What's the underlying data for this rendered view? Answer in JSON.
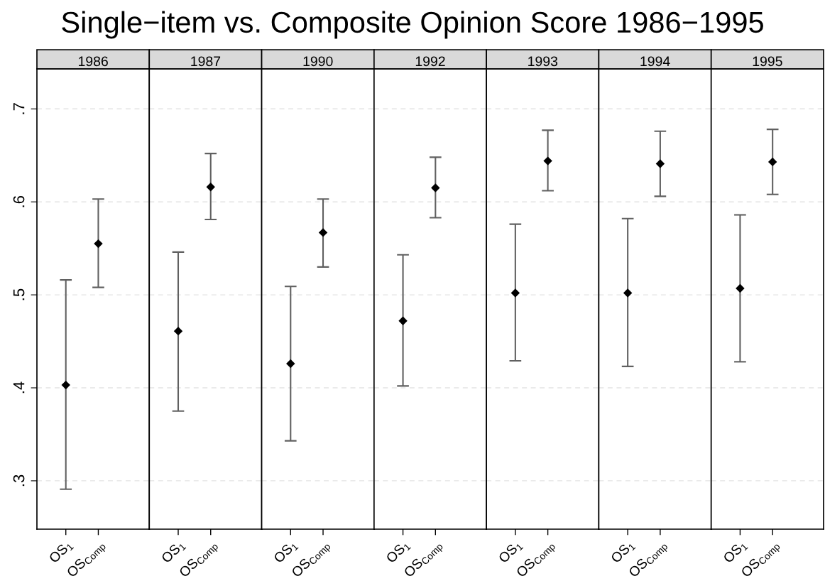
{
  "chart_data": [
    {
      "type": "scatter",
      "subtitle": "1986",
      "categories": [
        "OS$_{1}$",
        "OS$_{Comp}$"
      ],
      "values": [
        0.403,
        0.555
      ],
      "errors": [
        [
          0.291,
          0.516
        ],
        [
          0.508,
          0.603
        ]
      ],
      "color": "#000000",
      "marker": "diamond",
      "grid": "y",
      "ylim": [
        0.248,
        0.743
      ],
      "yticks": [
        {
          "value": 0.3,
          "label": ".3"
        },
        {
          "value": 0.4,
          "label": ".4"
        },
        {
          "value": 0.5,
          "label": ".5"
        },
        {
          "value": 0.6,
          "label": ".6"
        },
        {
          "value": 0.7,
          "label": ".7"
        }
      ]
    },
    {
      "type": "scatter",
      "subtitle": "1987",
      "categories": [
        "OS$_{1}$",
        "OS$_{Comp}$"
      ],
      "values": [
        0.461,
        0.616
      ],
      "errors": [
        [
          0.375,
          0.546
        ],
        [
          0.581,
          0.652
        ]
      ],
      "color": "#000000",
      "marker": "diamond",
      "grid": "y",
      "ylim": [
        0.248,
        0.743
      ],
      "tick_labels": "x"
    },
    {
      "type": "scatter",
      "subtitle": "1990",
      "categories": [
        "OS$_{1}$",
        "OS$_{Comp}$"
      ],
      "values": [
        0.426,
        0.567
      ],
      "errors": [
        [
          0.343,
          0.509
        ],
        [
          0.53,
          0.603
        ]
      ],
      "color": "#000000",
      "marker": "diamond",
      "grid": "y",
      "ylim": [
        0.248,
        0.743
      ],
      "tick_labels": "x"
    },
    {
      "type": "scatter",
      "title": "Single−item vs. Composite Opinion Score 1986−1995",
      "subtitle": "1992",
      "categories": [
        "OS$_{1}$",
        "OS$_{Comp}$"
      ],
      "values": [
        0.472,
        0.615
      ],
      "errors": [
        [
          0.402,
          0.543
        ],
        [
          0.583,
          0.648
        ]
      ],
      "color": "#000000",
      "marker": "diamond",
      "grid": "y",
      "ylim": [
        0.248,
        0.743
      ],
      "tick_labels": "x"
    },
    {
      "type": "scatter",
      "subtitle": "1993",
      "categories": [
        "OS$_{1}$",
        "OS$_{Comp}$"
      ],
      "values": [
        0.502,
        0.644
      ],
      "errors": [
        [
          0.429,
          0.576
        ],
        [
          0.612,
          0.677
        ]
      ],
      "color": "#000000",
      "marker": "diamond",
      "grid": "y",
      "ylim": [
        0.248,
        0.743
      ],
      "tick_labels": "x"
    },
    {
      "type": "scatter",
      "subtitle": "1994",
      "categories": [
        "OS$_{1}$",
        "OS$_{Comp}$"
      ],
      "values": [
        0.502,
        0.641
      ],
      "errors": [
        [
          0.423,
          0.582
        ],
        [
          0.606,
          0.676
        ]
      ],
      "color": "#000000",
      "marker": "diamond",
      "grid": "y",
      "ylim": [
        0.248,
        0.743
      ],
      "tick_labels": "x"
    },
    {
      "type": "scatter",
      "subtitle": "1995",
      "categories": [
        "OS$_{1}$",
        "OS$_{Comp}$"
      ],
      "values": [
        0.507,
        0.643
      ],
      "errors": [
        [
          0.428,
          0.586
        ],
        [
          0.608,
          0.678
        ]
      ],
      "color": "#000000",
      "marker": "diamond",
      "grid": "y",
      "ylim": [
        0.248,
        0.743
      ],
      "tick_labels": "x"
    }
  ]
}
